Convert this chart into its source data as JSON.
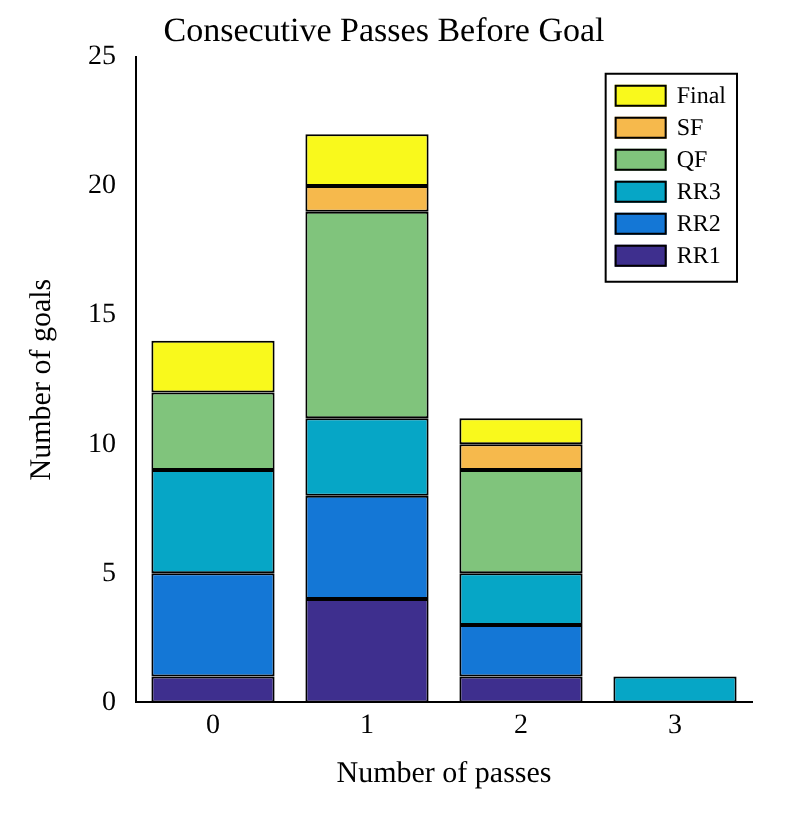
{
  "chart_data": {
    "type": "bar",
    "title": "Consecutive Passes Before Goal",
    "xlabel": "Number of passes",
    "ylabel": "Number of goals",
    "categories": [
      "0",
      "1",
      "2",
      "3"
    ],
    "stacked": true,
    "ylim": [
      0,
      25
    ],
    "yticks": [
      0,
      5,
      10,
      15,
      20,
      25
    ],
    "grid": false,
    "legend": "top right",
    "series": [
      {
        "name": "RR1",
        "color": "#3e2f8e",
        "values": [
          1,
          4,
          1,
          0
        ]
      },
      {
        "name": "RR2",
        "color": "#1477d6",
        "values": [
          4,
          4,
          2,
          0
        ]
      },
      {
        "name": "RR3",
        "color": "#06a6c6",
        "values": [
          4,
          3,
          2,
          1
        ]
      },
      {
        "name": "QF",
        "color": "#80c47c",
        "values": [
          3,
          8,
          4,
          0
        ]
      },
      {
        "name": "SF",
        "color": "#f6b94c",
        "values": [
          0,
          1,
          1,
          0
        ]
      },
      {
        "name": "Final",
        "color": "#f9f91c",
        "values": [
          2,
          2,
          1,
          0
        ]
      }
    ]
  }
}
